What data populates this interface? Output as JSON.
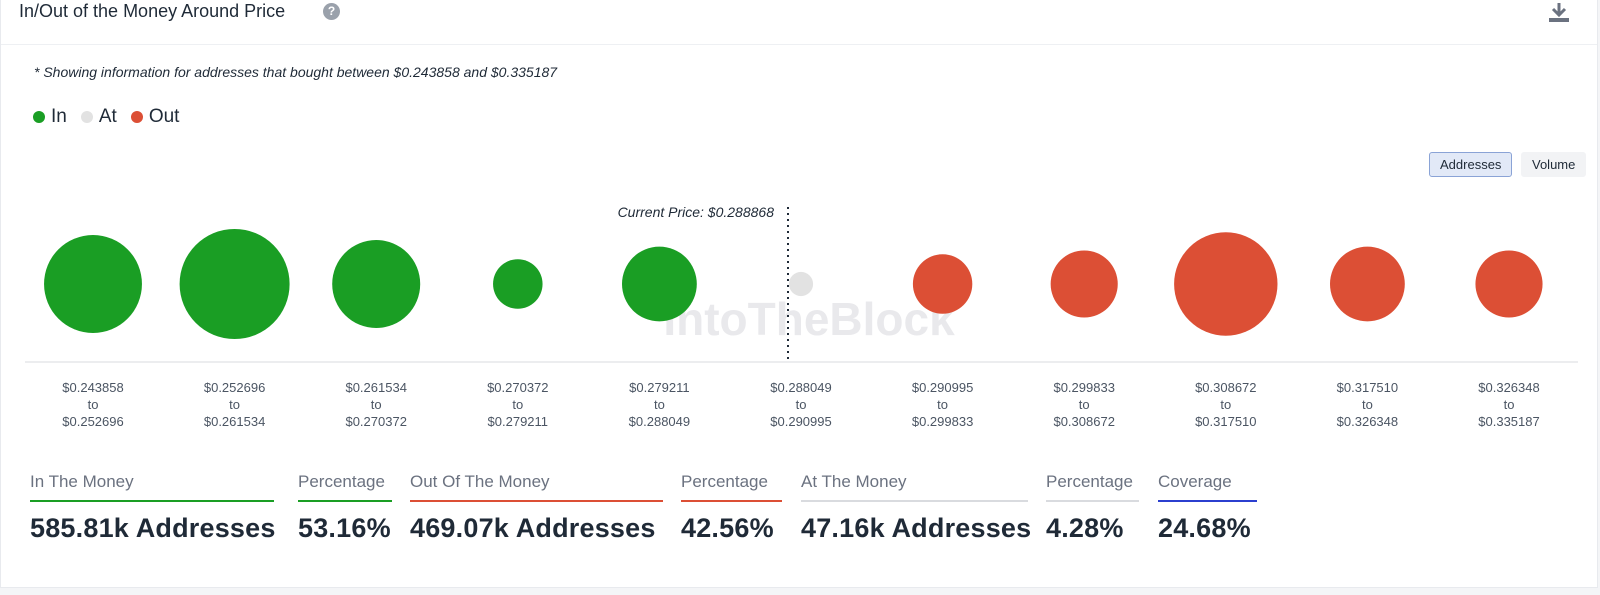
{
  "header": {
    "title": "In/Out of the Money Around Price",
    "help_icon": "question-circle-icon",
    "download_icon": "download-icon"
  },
  "note": "* Showing information for addresses that bought between $0.243858 and $0.335187",
  "legend": [
    {
      "label": "In",
      "color": "#1a9e24"
    },
    {
      "label": "At",
      "color": "#e2e2e2"
    },
    {
      "label": "Out",
      "color": "#dc4f35"
    }
  ],
  "toggle": {
    "options": [
      "Addresses",
      "Volume"
    ],
    "selected": "Addresses"
  },
  "chart_data": {
    "type": "bubble",
    "current_price_label": "Current Price: $0.288868",
    "watermark": "IntoTheBlock",
    "categories": [
      {
        "from": "$0.243858",
        "to_word": "to",
        "to": "$0.252696",
        "status": "In",
        "relative_size": 0.89
      },
      {
        "from": "$0.252696",
        "to_word": "to",
        "to": "$0.261534",
        "status": "In",
        "relative_size": 1.0
      },
      {
        "from": "$0.261534",
        "to_word": "to",
        "to": "$0.270372",
        "status": "In",
        "relative_size": 0.8
      },
      {
        "from": "$0.270372",
        "to_word": "to",
        "to": "$0.279211",
        "status": "In",
        "relative_size": 0.45
      },
      {
        "from": "$0.279211",
        "to_word": "to",
        "to": "$0.288049",
        "status": "In",
        "relative_size": 0.68
      },
      {
        "from": "$0.288049",
        "to_word": "to",
        "to": "$0.290995",
        "status": "At",
        "relative_size": 0.22
      },
      {
        "from": "$0.290995",
        "to_word": "to",
        "to": "$0.299833",
        "status": "Out",
        "relative_size": 0.54
      },
      {
        "from": "$0.299833",
        "to_word": "to",
        "to": "$0.308672",
        "status": "Out",
        "relative_size": 0.61
      },
      {
        "from": "$0.308672",
        "to_word": "to",
        "to": "$0.317510",
        "status": "Out",
        "relative_size": 0.94
      },
      {
        "from": "$0.317510",
        "to_word": "to",
        "to": "$0.326348",
        "status": "Out",
        "relative_size": 0.68
      },
      {
        "from": "$0.326348",
        "to_word": "to",
        "to": "$0.335187",
        "status": "Out",
        "relative_size": 0.61
      }
    ],
    "current_price_between_index": 5
  },
  "stats": [
    {
      "label": "In The Money",
      "value": "585.81k Addresses",
      "color": "#1a9e24"
    },
    {
      "label": "Percentage",
      "value": "53.16%",
      "color": "#1a9e24"
    },
    {
      "label": "Out Of The Money",
      "value": "469.07k Addresses",
      "color": "#dc4f35"
    },
    {
      "label": "Percentage",
      "value": "42.56%",
      "color": "#dc4f35"
    },
    {
      "label": "At The Money",
      "value": "47.16k Addresses",
      "color": "#d9dbdf"
    },
    {
      "label": "Percentage",
      "value": "4.28%",
      "color": "#d9dbdf"
    },
    {
      "label": "Coverage",
      "value": "24.68%",
      "color": "#2b3fcf"
    }
  ]
}
